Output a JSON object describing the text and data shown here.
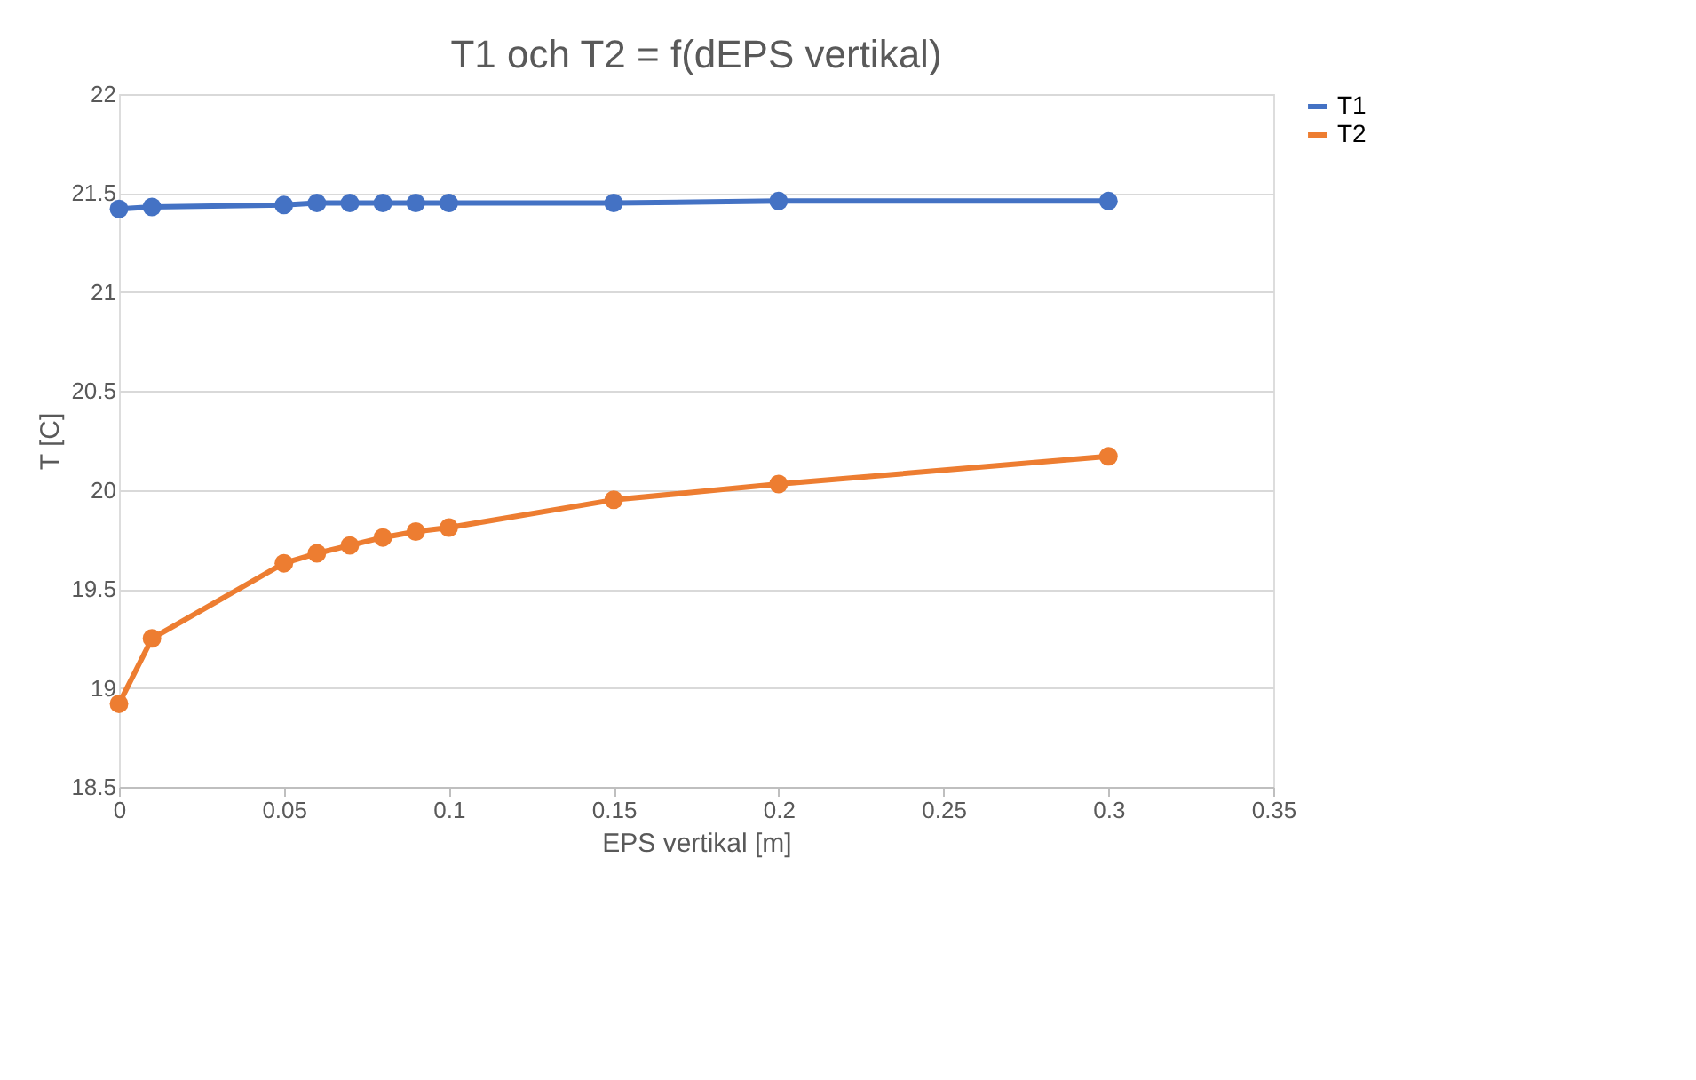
{
  "chart_data": {
    "type": "line",
    "title": "T1 och T2 = f(dEPS vertikal)",
    "xlabel": "EPS vertikal [m]",
    "ylabel": "T [C]",
    "x": [
      0,
      0.01,
      0.05,
      0.06,
      0.07,
      0.08,
      0.09,
      0.1,
      0.15,
      0.2,
      0.3
    ],
    "series": [
      {
        "name": "T1",
        "color": "#4472c4",
        "values": [
          21.42,
          21.43,
          21.44,
          21.45,
          21.45,
          21.45,
          21.45,
          21.45,
          21.45,
          21.46,
          21.46
        ]
      },
      {
        "name": "T2",
        "color": "#ed7d31",
        "values": [
          18.92,
          19.25,
          19.63,
          19.68,
          19.72,
          19.76,
          19.79,
          19.81,
          19.95,
          20.03,
          20.17
        ]
      }
    ],
    "xlim": [
      0,
      0.35
    ],
    "xticks": [
      0,
      0.05,
      0.1,
      0.15,
      0.2,
      0.25,
      0.3,
      0.35
    ],
    "ylim": [
      18.5,
      22
    ],
    "yticks": [
      18.5,
      19,
      19.5,
      20,
      20.5,
      21,
      21.5,
      22
    ],
    "grid": "y",
    "legend": "right",
    "marker": "circle",
    "line_style": "solid"
  }
}
